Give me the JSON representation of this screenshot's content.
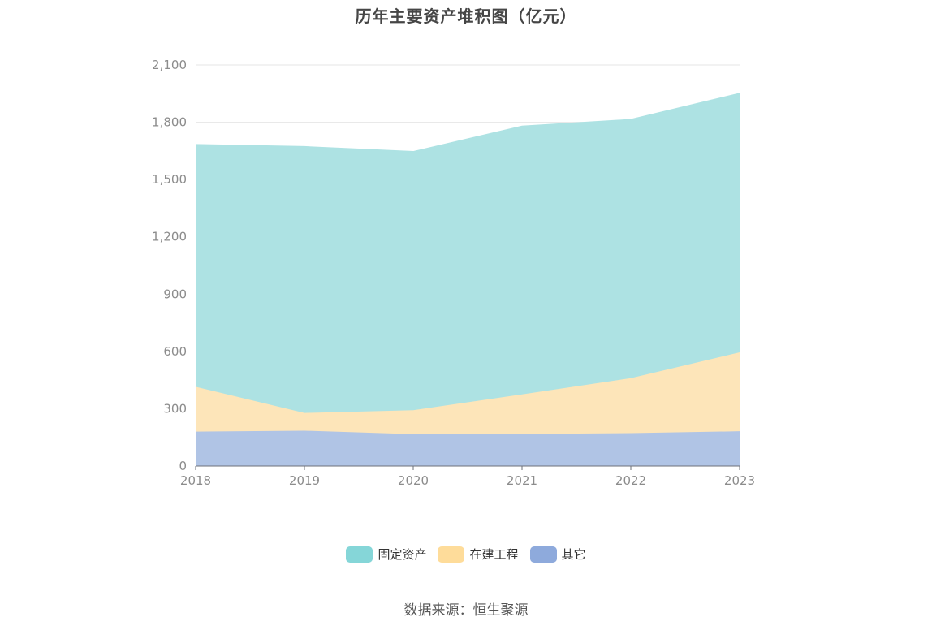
{
  "title": "历年主要资产堆积图（亿元）",
  "source_text": "数据来源：恒生聚源",
  "colors": {
    "grid": "#e6e6e6",
    "axis": "#6e7079",
    "tick_text": "#8c8c8c"
  },
  "chart_data": {
    "type": "area",
    "stacked": true,
    "title": "历年主要资产堆积图（亿元）",
    "xlabel": "",
    "ylabel": "",
    "categories": [
      "2018",
      "2019",
      "2020",
      "2021",
      "2022",
      "2023"
    ],
    "ylim": [
      0,
      2100
    ],
    "yticks": [
      0,
      300,
      600,
      900,
      1200,
      1500,
      1800,
      2100
    ],
    "ytick_labels": [
      "0",
      "300",
      "600",
      "900",
      "1,200",
      "1,500",
      "1,800",
      "2,100"
    ],
    "grid": true,
    "legend_position": "bottom-center",
    "series": [
      {
        "name": "其它",
        "color": "#8eaadc",
        "fill": "#b0c4e5",
        "values": [
          180,
          185,
          167,
          168,
          172,
          182
        ]
      },
      {
        "name": "在建工程",
        "color": "#fedc9a",
        "fill": "#fde5b9",
        "values": [
          235,
          93,
          125,
          207,
          288,
          413
        ]
      },
      {
        "name": "固定资产",
        "color": "#85d6d8",
        "fill": "#ade2e3",
        "values": [
          1268,
          1394,
          1354,
          1404,
          1354,
          1356
        ]
      }
    ],
    "legend_order": [
      "固定资产",
      "在建工程",
      "其它"
    ]
  }
}
